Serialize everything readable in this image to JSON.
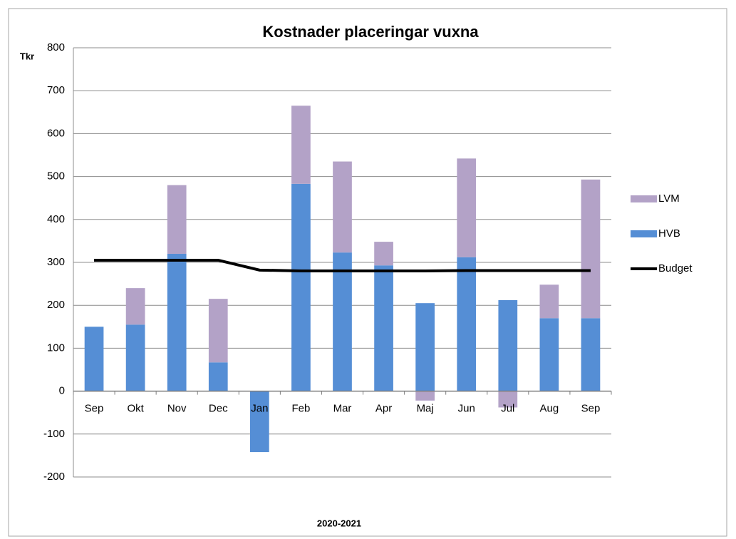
{
  "chart_data": {
    "type": "bar",
    "stacked": true,
    "title": "Kostnader placeringar vuxna",
    "y_label": "Tkr",
    "x_label": "2020-2021",
    "categories": [
      "Sep",
      "Okt",
      "Nov",
      "Dec",
      "Jan",
      "Feb",
      "Mar",
      "Apr",
      "Maj",
      "Jun",
      "Jul",
      "Aug",
      "Sep"
    ],
    "series": [
      {
        "name": "HVB",
        "color": "#558ed5",
        "values": [
          150,
          155,
          320,
          67,
          -142,
          483,
          323,
          293,
          205,
          312,
          212,
          170,
          170
        ]
      },
      {
        "name": "LVM",
        "color": "#b3a2c7",
        "values": [
          0,
          85,
          160,
          148,
          0,
          182,
          212,
          55,
          -22,
          230,
          -38,
          78,
          323
        ]
      },
      {
        "name": "Budget",
        "type": "line",
        "color": "#000000",
        "values": [
          305,
          305,
          305,
          305,
          282,
          280,
          280,
          280,
          280,
          281,
          281,
          281,
          281
        ]
      }
    ],
    "ylim": [
      -200,
      800
    ],
    "yticks": [
      -200,
      -100,
      0,
      100,
      200,
      300,
      400,
      500,
      600,
      700,
      800
    ],
    "grid": true,
    "legend": "right"
  }
}
